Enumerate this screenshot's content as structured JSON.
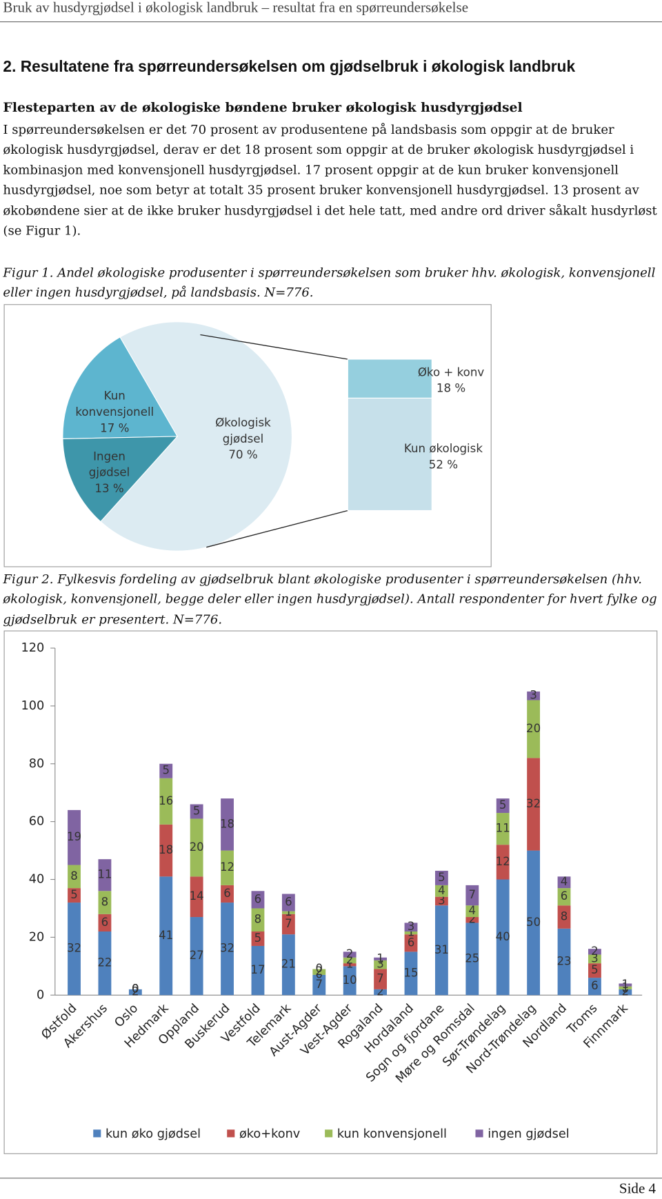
{
  "header": {
    "title": "Bruk av husdyrgjødsel i økologisk landbruk – resultat fra en spørreundersøkelse"
  },
  "section": {
    "heading": "2. Resultatene fra spørreundersøkelsen om gjødselbruk i økologisk landbruk",
    "subheading": "Flesteparten av de økologiske bøndene bruker økologisk husdyrgjødsel",
    "paragraph": "I spørreundersøkelsen er det 70 prosent av produsentene på landsbasis som oppgir at de bruker økologisk husdyrgjødsel, derav er det 18 prosent som oppgir at de bruker økologisk husdyrgjødsel i kombinasjon med konvensjonell husdyrgjødsel. 17 prosent oppgir at de kun bruker konvensjonell husdyrgjødsel, noe som betyr at totalt 35 prosent bruker konvensjonell husdyrgjødsel. 13 prosent av økobøndene sier at de ikke bruker husdyrgjødsel i det hele tatt, med andre ord driver såkalt husdyrløst (se Figur 1)."
  },
  "figures": [
    {
      "caption": "Figur 1. Andel økologiske produsenter i spørreundersøkelsen som bruker hhv. økologisk, konvensjonell eller ingen husdyrgjødsel, på landsbasis. N=776."
    },
    {
      "caption": "Figur 2. Fylkesvis fordeling av gjødselbruk blant økologiske produsenter i spørreundersøkelsen (hhv. økologisk, konvensjonell, begge deler eller ingen husdyrgjødsel). Antall respondenter for hvert fylke og gjødselbruk er presentert. N=776."
    }
  ],
  "chart_data": [
    {
      "type": "pie",
      "categories": [
        "Økologisk gjødsel",
        "Kun konvensjonell",
        "Ingen gjødsel"
      ],
      "values": [
        70,
        17,
        13
      ],
      "value_labels": [
        "70 %",
        "17 %",
        "13 %"
      ],
      "colors": [
        "#dcebf2",
        "#5db5cf",
        "#3e96aa"
      ],
      "breakdown": {
        "categories": [
          "Øko + konv",
          "Kun økologisk"
        ],
        "values": [
          18,
          52
        ],
        "value_labels": [
          "18 %",
          "52 %"
        ],
        "colors": [
          "#95cfde",
          "#c6e0ea"
        ]
      }
    },
    {
      "type": "stacked-bar",
      "categories": [
        "Østfold",
        "Akershus",
        "Oslo",
        "Hedmark",
        "Oppland",
        "Buskerud",
        "Vestfold",
        "Telemark",
        "Aust-Agder",
        "Vest-Agder",
        "Rogaland",
        "Hordaland",
        "Sogn og fjordane",
        "Møre og Romsdal",
        "Sør-Trøndelag",
        "Nord-Trøndelag",
        "Nordland",
        "Troms",
        "Finnmark"
      ],
      "series": [
        {
          "name": "kun øko gjødsel",
          "color": "#4f81bd",
          "values": [
            32,
            22,
            2,
            41,
            27,
            32,
            17,
            21,
            7,
            10,
            2,
            15,
            31,
            25,
            40,
            50,
            23,
            6,
            2
          ]
        },
        {
          "name": "øko+konv",
          "color": "#c0504d",
          "values": [
            5,
            6,
            0,
            18,
            14,
            6,
            5,
            7,
            0,
            1,
            7,
            6,
            3,
            2,
            12,
            32,
            8,
            5,
            0
          ]
        },
        {
          "name": "kun konvensjonell",
          "color": "#9bbb59",
          "values": [
            8,
            8,
            0,
            16,
            20,
            12,
            8,
            1,
            2,
            2,
            3,
            1,
            4,
            4,
            11,
            20,
            6,
            3,
            1
          ]
        },
        {
          "name": "ingen gjødsel",
          "color": "#8064a2",
          "values": [
            19,
            11,
            0,
            5,
            5,
            18,
            6,
            6,
            0,
            2,
            1,
            3,
            5,
            7,
            5,
            3,
            4,
            2,
            1
          ]
        }
      ],
      "ylim": [
        0,
        120
      ],
      "yticks": [
        0,
        20,
        40,
        60,
        80,
        100,
        120
      ],
      "grid": false,
      "legend": "bottom"
    }
  ],
  "footer": {
    "page": "Side 4"
  }
}
